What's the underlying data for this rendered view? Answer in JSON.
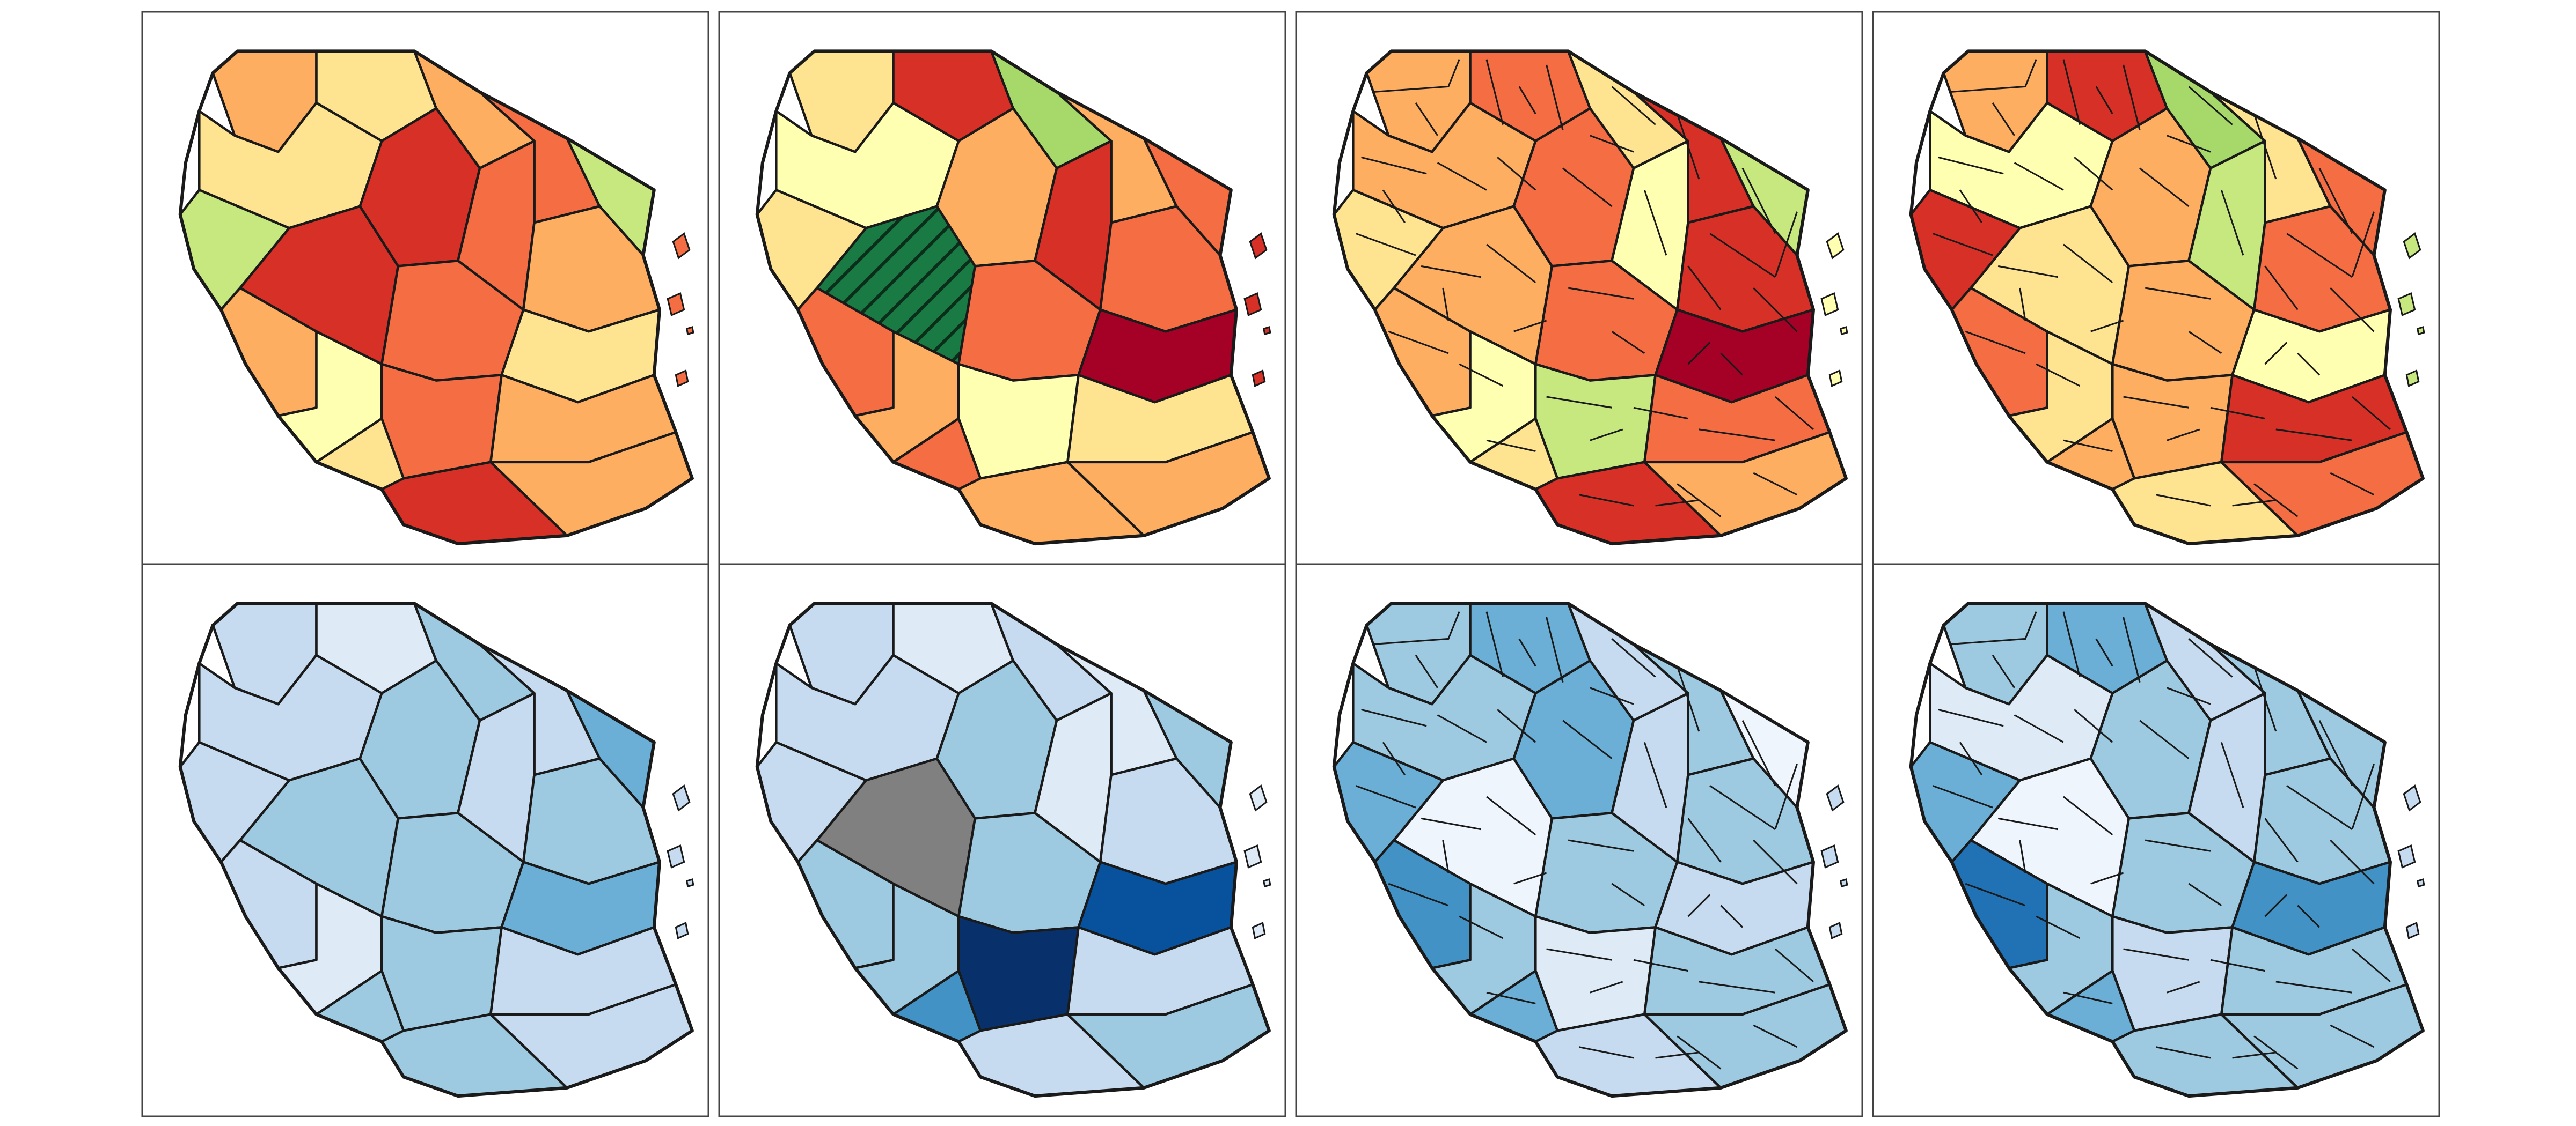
{
  "figure": {
    "layout": {
      "rows": 2,
      "cols": 4
    },
    "palettes": {
      "row1": [
        "#ffffb2",
        "#fee391",
        "#fdae61",
        "#f46d43",
        "#d73027",
        "#a50026",
        "#c7e77f",
        "#a6d96a"
      ],
      "row2": [
        "#eef5fc",
        "#deebf7",
        "#c6dbef",
        "#9ecae1",
        "#6baed6",
        "#4292c6",
        "#2171b5",
        "#08519c",
        "#08306b"
      ],
      "missing_fill": "#808080",
      "highlight_fill": "#1a7a44"
    },
    "panels": [
      {
        "name": "panel-r1c1",
        "row": 0,
        "col": 0,
        "palette": "row1",
        "level": "region",
        "fills": [
          "#fdae61",
          "#fee391",
          "#fdae61",
          "#f46d43",
          "#c7e77f",
          "#fee391",
          "#d73027",
          "#f46d43",
          "#fdae61",
          "#d73027",
          "#c7e77f",
          "#f46d43",
          "#fee391",
          "#fdae61",
          "#ffffb2",
          "#f46d43",
          "#fdae61",
          "#fee391",
          "#d73027",
          "#fdae61"
        ]
      },
      {
        "name": "panel-r1c2",
        "row": 0,
        "col": 1,
        "palette": "row1",
        "level": "region",
        "highlight": "hatched",
        "highlight_index": 9,
        "fills": [
          "#fee391",
          "#d73027",
          "#a6d96a",
          "#fdae61",
          "#f46d43",
          "#ffffb2",
          "#fdae61",
          "#d73027",
          "#f46d43",
          "#1a7a44",
          "#fee391",
          "#f46d43",
          "#a50026",
          "#f46d43",
          "#fdae61",
          "#ffffb2",
          "#fee391",
          "#f46d43",
          "#fdae61",
          "#fdae61"
        ]
      },
      {
        "name": "panel-r1c3",
        "row": 0,
        "col": 2,
        "palette": "row1",
        "level": "district",
        "fills": [
          "#fdae61",
          "#f46d43",
          "#fee391",
          "#d73027",
          "#c7e77f",
          "#fdae61",
          "#f46d43",
          "#ffffb2",
          "#d73027",
          "#fdae61",
          "#fee391",
          "#f46d43",
          "#a50026",
          "#fdae61",
          "#ffffb2",
          "#c7e77f",
          "#f46d43",
          "#fee391",
          "#d73027",
          "#fdae61"
        ]
      },
      {
        "name": "panel-r1c4",
        "row": 0,
        "col": 3,
        "palette": "row1",
        "level": "district",
        "fills": [
          "#fdae61",
          "#d73027",
          "#a6d96a",
          "#fee391",
          "#f46d43",
          "#ffffb2",
          "#fdae61",
          "#c7e77f",
          "#f46d43",
          "#fee391",
          "#d73027",
          "#fdae61",
          "#ffffb2",
          "#f46d43",
          "#fee391",
          "#fdae61",
          "#d73027",
          "#fdae61",
          "#fee391",
          "#f46d43"
        ]
      },
      {
        "name": "panel-r2c1",
        "row": 1,
        "col": 0,
        "palette": "row2",
        "level": "region",
        "fills": [
          "#c6dbef",
          "#deebf7",
          "#9ecae1",
          "#c6dbef",
          "#6baed6",
          "#c6dbef",
          "#9ecae1",
          "#c6dbef",
          "#9ecae1",
          "#9ecae1",
          "#c6dbef",
          "#9ecae1",
          "#6baed6",
          "#c6dbef",
          "#deebf7",
          "#9ecae1",
          "#c6dbef",
          "#9ecae1",
          "#9ecae1",
          "#c6dbef"
        ]
      },
      {
        "name": "panel-r2c2",
        "row": 1,
        "col": 1,
        "palette": "row2",
        "level": "region",
        "highlight": "missing",
        "highlight_index": 9,
        "fills": [
          "#c6dbef",
          "#deebf7",
          "#c6dbef",
          "#deebf7",
          "#9ecae1",
          "#c6dbef",
          "#9ecae1",
          "#deebf7",
          "#c6dbef",
          "#808080",
          "#c6dbef",
          "#9ecae1",
          "#08519c",
          "#9ecae1",
          "#9ecae1",
          "#08306b",
          "#c6dbef",
          "#4292c6",
          "#c6dbef",
          "#9ecae1"
        ]
      },
      {
        "name": "panel-r2c3",
        "row": 1,
        "col": 2,
        "palette": "row2",
        "level": "district",
        "fills": [
          "#9ecae1",
          "#6baed6",
          "#c6dbef",
          "#9ecae1",
          "#eef5fc",
          "#9ecae1",
          "#6baed6",
          "#c6dbef",
          "#9ecae1",
          "#eef5fc",
          "#6baed6",
          "#9ecae1",
          "#c6dbef",
          "#4292c6",
          "#9ecae1",
          "#deebf7",
          "#9ecae1",
          "#6baed6",
          "#c6dbef",
          "#9ecae1"
        ]
      },
      {
        "name": "panel-r2c4",
        "row": 1,
        "col": 3,
        "palette": "row2",
        "level": "district",
        "fills": [
          "#9ecae1",
          "#6baed6",
          "#c6dbef",
          "#9ecae1",
          "#9ecae1",
          "#deebf7",
          "#9ecae1",
          "#c6dbef",
          "#9ecae1",
          "#eef5fc",
          "#6baed6",
          "#9ecae1",
          "#4292c6",
          "#2171b5",
          "#9ecae1",
          "#c6dbef",
          "#9ecae1",
          "#6baed6",
          "#9ecae1",
          "#9ecae1"
        ]
      }
    ]
  }
}
